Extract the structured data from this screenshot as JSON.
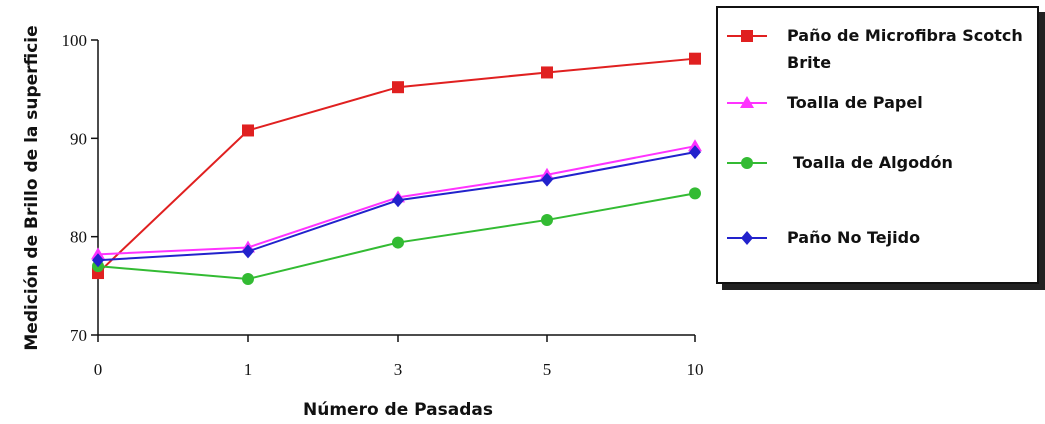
{
  "chart_data": {
    "type": "line",
    "title": "",
    "xlabel": "Número de Pasadas",
    "ylabel": "Medición de Brillo de la superficie",
    "categories": [
      "0",
      "1",
      "3",
      "5",
      "10"
    ],
    "ylim": [
      70,
      100
    ],
    "yticks": [
      "70",
      "80",
      "90",
      "100"
    ],
    "grid": false,
    "legend_position": "right",
    "series": [
      {
        "name": "Paño de Microfibra Scotch Brite",
        "marker": "square",
        "color": "#e02020",
        "values": [
          76.3,
          90.8,
          95.2,
          96.7,
          98.1
        ]
      },
      {
        "name": "Toalla de Papel",
        "marker": "triangle",
        "color": "#ff33ff",
        "values": [
          78.2,
          78.9,
          84.0,
          86.3,
          89.2
        ]
      },
      {
        "name": "Toalla de Algodón",
        "marker": "circle",
        "color": "#33bb33",
        "values": [
          77.0,
          75.7,
          79.4,
          81.7,
          84.4
        ]
      },
      {
        "name": "Paño No Tejido",
        "marker": "diamond",
        "color": "#2222cc",
        "values": [
          77.6,
          78.5,
          83.7,
          85.8,
          88.6
        ]
      }
    ]
  },
  "legend": {
    "items": [
      {
        "lines": [
          "Paño de Microfibra Scotch",
          "Brite"
        ]
      },
      {
        "lines": [
          "Toalla de Papel"
        ]
      },
      {
        "lines": [
          "Toalla de Algodón"
        ]
      },
      {
        "lines": [
          "Paño No Tejido"
        ]
      }
    ]
  }
}
